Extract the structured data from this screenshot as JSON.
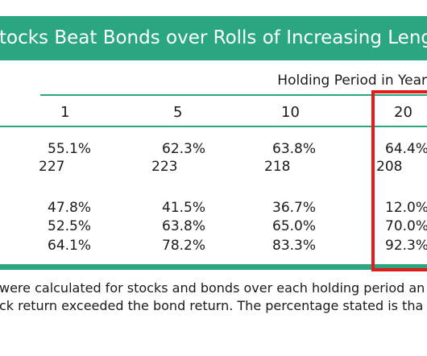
{
  "title": "tocks Beat Bonds over Rolls of Increasing Leng",
  "holding_period_label": "Holding Period in Year",
  "columns": [
    "1",
    "5",
    "10",
    "20"
  ],
  "rows": [
    [
      "55.1%",
      "62.3%",
      "63.8%",
      "64.4%"
    ],
    [
      "227",
      "223",
      "218",
      "208"
    ],
    [
      "47.8%",
      "41.5%",
      "36.7%",
      "12.0%"
    ],
    [
      "52.5%",
      "63.8%",
      "65.0%",
      "70.0%"
    ],
    [
      "64.1%",
      "78.2%",
      "83.3%",
      "92.3%"
    ]
  ],
  "footnote": [
    "were calculated for stocks and bonds over each holding period an",
    "ck return exceeded the bond return. The percentage stated is tha"
  ],
  "colors": {
    "accent": "#2aa680",
    "highlight": "#e31b1b"
  }
}
